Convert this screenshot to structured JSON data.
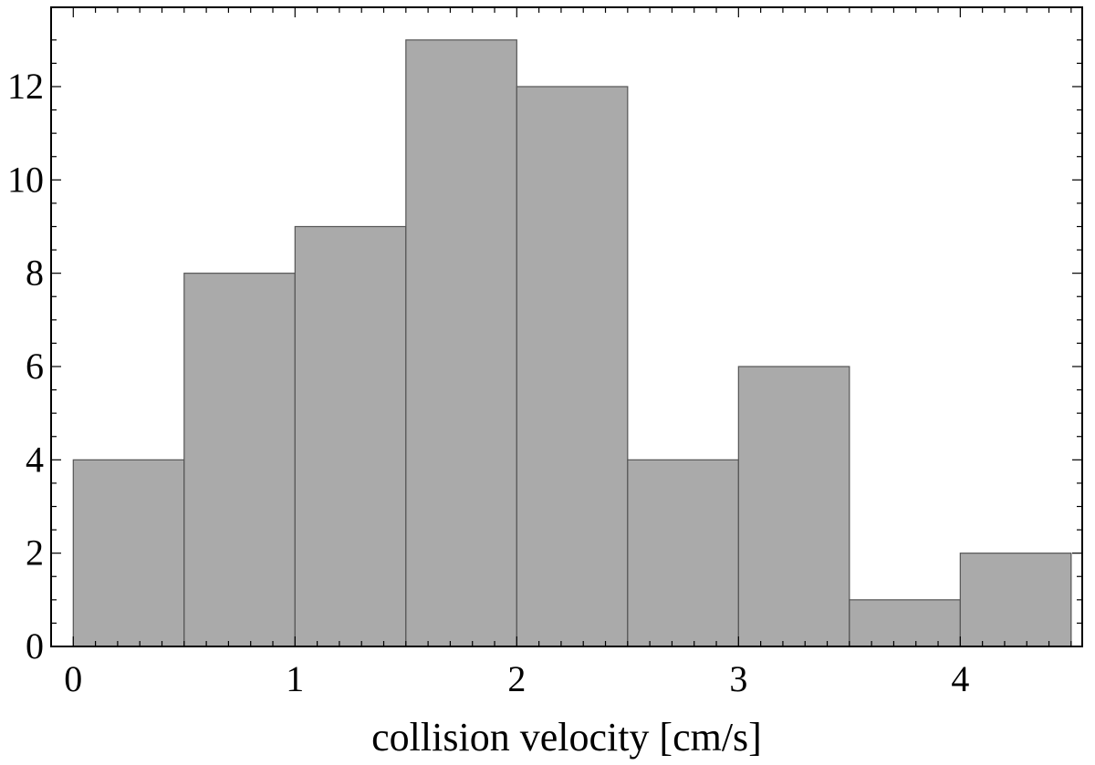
{
  "chart_data": {
    "type": "bar",
    "title": "",
    "xlabel": "collision velocity [cm/s]",
    "ylabel": "",
    "bin_edges": [
      0,
      0.5,
      1,
      1.5,
      2,
      2.5,
      3,
      3.5,
      4,
      4.5
    ],
    "values": [
      4,
      8,
      9,
      13,
      12,
      4,
      6,
      1,
      2
    ],
    "xlim": [
      -0.1,
      4.55
    ],
    "ylim": [
      0,
      13.7
    ],
    "xticks": [
      0,
      1,
      2,
      3,
      4
    ],
    "xtick_labels": [
      "0",
      "1",
      "2",
      "3",
      "4"
    ],
    "yticks": [
      0,
      2,
      4,
      6,
      8,
      10,
      12
    ],
    "ytick_labels": [
      "0",
      "2",
      "4",
      "6",
      "8",
      "10",
      "12"
    ],
    "grid": false,
    "legend": "none",
    "bar_color": "#aaaaaa",
    "bar_edge_color": "#555555"
  }
}
